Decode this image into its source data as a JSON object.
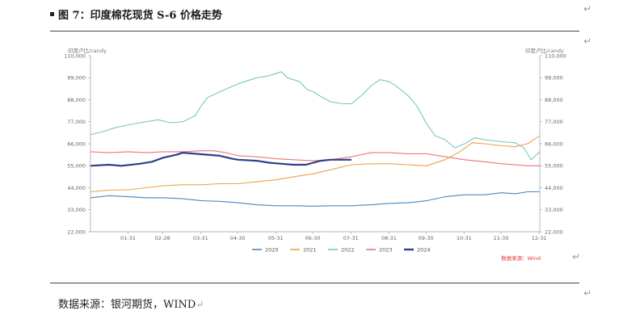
{
  "header": {
    "title": "图 7：印度棉花现货 S-6 价格走势"
  },
  "footer": {
    "source": "数据来源：银河期货，WIND"
  },
  "colors": {
    "2020": "#4a86bd",
    "2021": "#f0a04b",
    "2022": "#79c7c0",
    "2023": "#ea7575",
    "2024": "#2e3f8c"
  },
  "chart_data": {
    "type": "line",
    "title": "",
    "ylabel_left": "印度卢比/candy",
    "ylabel_right": "印度卢比/candy",
    "source_note": "数据来源：Wind",
    "ylim": [
      22000,
      110000
    ],
    "y_ticks": [
      22000,
      33000,
      44000,
      55000,
      66000,
      77000,
      88000,
      99000,
      110000
    ],
    "y_tick_labels": [
      "22,000",
      "33,000",
      "44,000",
      "55,000",
      "66,000",
      "77,000",
      "88,000",
      "99,000",
      "110,000"
    ],
    "x_ticks": [
      "01-31",
      "02-28",
      "03-31",
      "04-30",
      "05-31",
      "06-30",
      "07-31",
      "08-31",
      "09-30",
      "10-31",
      "11-30",
      "12-31"
    ],
    "x_domain_days": [
      0,
      365
    ],
    "legend": [
      "2020",
      "2021",
      "2022",
      "2023",
      "2024"
    ],
    "series": [
      {
        "name": "2020",
        "points": [
          [
            0,
            39000
          ],
          [
            15,
            40000
          ],
          [
            31,
            39500
          ],
          [
            45,
            39000
          ],
          [
            59,
            39000
          ],
          [
            75,
            38500
          ],
          [
            90,
            37500
          ],
          [
            105,
            37200
          ],
          [
            120,
            36500
          ],
          [
            135,
            35500
          ],
          [
            151,
            35000
          ],
          [
            165,
            35000
          ],
          [
            181,
            34800
          ],
          [
            195,
            35000
          ],
          [
            212,
            35000
          ],
          [
            228,
            35500
          ],
          [
            243,
            36200
          ],
          [
            258,
            36500
          ],
          [
            273,
            37500
          ],
          [
            288,
            39500
          ],
          [
            304,
            40500
          ],
          [
            320,
            40500
          ],
          [
            334,
            41500
          ],
          [
            345,
            41000
          ],
          [
            355,
            42000
          ],
          [
            365,
            42000
          ]
        ]
      },
      {
        "name": "2021",
        "points": [
          [
            0,
            42000
          ],
          [
            15,
            42800
          ],
          [
            31,
            43000
          ],
          [
            45,
            44000
          ],
          [
            59,
            45000
          ],
          [
            75,
            45500
          ],
          [
            90,
            45500
          ],
          [
            105,
            46000
          ],
          [
            120,
            46000
          ],
          [
            135,
            47000
          ],
          [
            151,
            48000
          ],
          [
            165,
            49500
          ],
          [
            181,
            51000
          ],
          [
            195,
            53000
          ],
          [
            212,
            55500
          ],
          [
            228,
            56000
          ],
          [
            243,
            56000
          ],
          [
            258,
            55500
          ],
          [
            273,
            55000
          ],
          [
            288,
            58000
          ],
          [
            300,
            62000
          ],
          [
            310,
            66500
          ],
          [
            320,
            66000
          ],
          [
            334,
            65000
          ],
          [
            345,
            64500
          ],
          [
            355,
            66000
          ],
          [
            365,
            70000
          ]
        ]
      },
      {
        "name": "2022",
        "points": [
          [
            0,
            70500
          ],
          [
            10,
            72000
          ],
          [
            20,
            74000
          ],
          [
            31,
            75500
          ],
          [
            45,
            77000
          ],
          [
            55,
            78000
          ],
          [
            65,
            76500
          ],
          [
            75,
            77000
          ],
          [
            85,
            80000
          ],
          [
            90,
            85000
          ],
          [
            95,
            89000
          ],
          [
            105,
            92000
          ],
          [
            120,
            96000
          ],
          [
            135,
            99000
          ],
          [
            145,
            100000
          ],
          [
            155,
            102000
          ],
          [
            160,
            99000
          ],
          [
            170,
            97000
          ],
          [
            176,
            93000
          ],
          [
            181,
            92000
          ],
          [
            186,
            90000
          ],
          [
            195,
            87000
          ],
          [
            205,
            86000
          ],
          [
            212,
            86000
          ],
          [
            220,
            90000
          ],
          [
            228,
            95000
          ],
          [
            235,
            98000
          ],
          [
            243,
            97000
          ],
          [
            250,
            94000
          ],
          [
            258,
            90000
          ],
          [
            265,
            85000
          ],
          [
            273,
            76000
          ],
          [
            280,
            70000
          ],
          [
            288,
            68000
          ],
          [
            296,
            64000
          ],
          [
            304,
            66000
          ],
          [
            312,
            69000
          ],
          [
            320,
            68000
          ],
          [
            334,
            67000
          ],
          [
            345,
            66500
          ],
          [
            352,
            64000
          ],
          [
            358,
            58000
          ],
          [
            365,
            62000
          ]
        ]
      },
      {
        "name": "2023",
        "points": [
          [
            0,
            62000
          ],
          [
            15,
            61500
          ],
          [
            31,
            62000
          ],
          [
            45,
            61500
          ],
          [
            59,
            62000
          ],
          [
            75,
            62000
          ],
          [
            90,
            62500
          ],
          [
            100,
            62500
          ],
          [
            110,
            61500
          ],
          [
            120,
            60000
          ],
          [
            135,
            59500
          ],
          [
            151,
            58500
          ],
          [
            165,
            58000
          ],
          [
            181,
            57500
          ],
          [
            195,
            58000
          ],
          [
            212,
            59500
          ],
          [
            228,
            61500
          ],
          [
            243,
            61500
          ],
          [
            258,
            61000
          ],
          [
            273,
            61000
          ],
          [
            288,
            59500
          ],
          [
            304,
            58000
          ],
          [
            320,
            57000
          ],
          [
            334,
            56000
          ],
          [
            345,
            55500
          ],
          [
            355,
            55000
          ],
          [
            365,
            55000
          ]
        ]
      },
      {
        "name": "2024",
        "points": [
          [
            0,
            55000
          ],
          [
            15,
            55500
          ],
          [
            25,
            55000
          ],
          [
            40,
            56000
          ],
          [
            50,
            57000
          ],
          [
            59,
            59000
          ],
          [
            70,
            60500
          ],
          [
            75,
            61500
          ],
          [
            85,
            61000
          ],
          [
            95,
            60500
          ],
          [
            105,
            60000
          ],
          [
            115,
            58500
          ],
          [
            120,
            58000
          ],
          [
            135,
            57500
          ],
          [
            145,
            56500
          ],
          [
            155,
            56000
          ],
          [
            165,
            55500
          ],
          [
            175,
            55500
          ],
          [
            181,
            56500
          ],
          [
            187,
            57500
          ],
          [
            195,
            58000
          ],
          [
            205,
            58000
          ],
          [
            212,
            58000
          ]
        ]
      }
    ]
  }
}
